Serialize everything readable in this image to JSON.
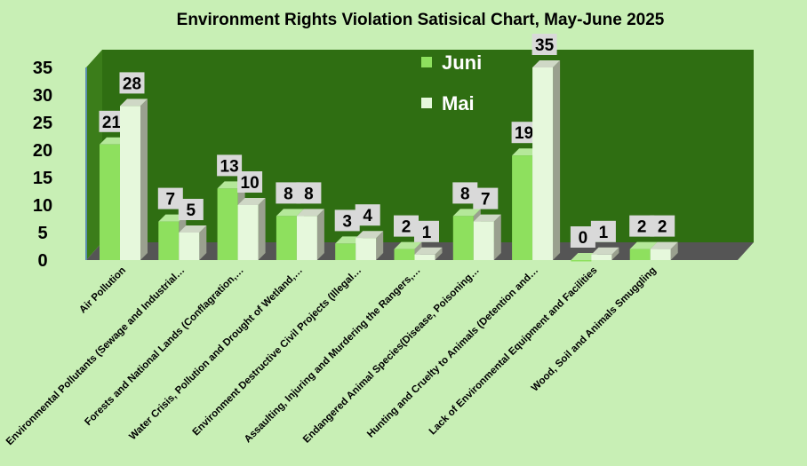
{
  "chart_data": {
    "type": "bar",
    "title": "Environment Rights Violation Satisical Chart, May-June 2025",
    "xlabel": "",
    "ylabel": "",
    "ylim": [
      0,
      35
    ],
    "yticks": [
      "0",
      "5",
      "10",
      "15",
      "20",
      "25",
      "30",
      "35"
    ],
    "legend_position": "top-center",
    "categories": [
      "Air Pollution",
      "Environmental Pollutants (Sewage and Industrial…",
      "Forests and National Lands (Conflagration,…",
      "Water Crisis, Pollution and Drought of Wetland,…",
      "Environment Destructive Civil Projects (Illegal…",
      "Assaulting, Injuring and Murdering the Rangers,…",
      "Endangered Animal Species(Disease, Poisoning…",
      "Hunting and Cruelty to Animals (Detention and…",
      "Lack of Environmental Equipment and Facilities",
      "Wood, Soil and Animals Smuggling"
    ],
    "series": [
      {
        "name": "Juni",
        "color": "#8ee05e",
        "values": [
          21,
          7,
          13,
          8,
          3,
          2,
          8,
          19,
          0,
          2
        ]
      },
      {
        "name": "Mai",
        "color": "#e6f8dc",
        "values": [
          28,
          5,
          10,
          8,
          4,
          1,
          7,
          35,
          1,
          2
        ]
      }
    ],
    "colors": {
      "wall": "#2f6e12",
      "floor": "#555555",
      "background": "#c8efb5"
    }
  }
}
